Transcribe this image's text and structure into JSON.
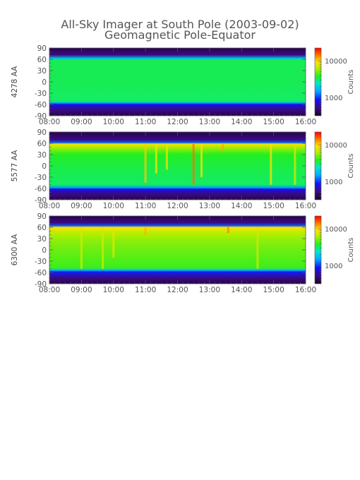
{
  "figure": {
    "title_line1": "All-Sky Imager at South Pole (2003-09-02)",
    "title_line2": "Geomagnetic Pole-Equator"
  },
  "chart_data": [
    {
      "type": "heatmap",
      "ylabel": "4278 AA",
      "x_ticks": [
        "08:00",
        "09:00",
        "10:00",
        "11:00",
        "12:00",
        "13:00",
        "14:00",
        "15:00",
        "16:00"
      ],
      "y_ticks": [
        90,
        60,
        30,
        0,
        -30,
        -60,
        -90
      ],
      "xlim": [
        "08:00",
        "16:00"
      ],
      "ylim": [
        -90,
        90
      ],
      "colorbar": {
        "label": "Counts",
        "ticks": [
          10000,
          1000
        ],
        "scale": "log"
      },
      "band_profile": [
        {
          "lat": 90,
          "level": 0.05
        },
        {
          "lat": 72,
          "level": 0.12
        },
        {
          "lat": 62,
          "level": 0.42
        },
        {
          "lat": 58,
          "level": 0.55
        },
        {
          "lat": 0,
          "level": 0.55
        },
        {
          "lat": -52,
          "level": 0.54
        },
        {
          "lat": -56,
          "level": 0.35
        },
        {
          "lat": -60,
          "level": 0.22
        },
        {
          "lat": -75,
          "level": 0.12
        },
        {
          "lat": -90,
          "level": 0.05
        }
      ],
      "features": []
    },
    {
      "type": "heatmap",
      "ylabel": "5577 AA",
      "x_ticks": [
        "08:00",
        "09:00",
        "10:00",
        "11:00",
        "12:00",
        "13:00",
        "14:00",
        "15:00",
        "16:00"
      ],
      "y_ticks": [
        90,
        60,
        30,
        0,
        -30,
        -60,
        -90
      ],
      "xlim": [
        "08:00",
        "16:00"
      ],
      "ylim": [
        -90,
        90
      ],
      "colorbar": {
        "label": "Counts",
        "ticks": [
          10000,
          1000
        ],
        "scale": "log"
      },
      "band_profile": [
        {
          "lat": 90,
          "level": 0.05
        },
        {
          "lat": 70,
          "level": 0.12
        },
        {
          "lat": 62,
          "level": 0.3
        },
        {
          "lat": 58,
          "level": 0.78
        },
        {
          "lat": 48,
          "level": 0.68
        },
        {
          "lat": 30,
          "level": 0.58
        },
        {
          "lat": 0,
          "level": 0.56
        },
        {
          "lat": -50,
          "level": 0.54
        },
        {
          "lat": -58,
          "level": 0.35
        },
        {
          "lat": -62,
          "level": 0.22
        },
        {
          "lat": -75,
          "level": 0.12
        },
        {
          "lat": -90,
          "level": 0.05
        }
      ],
      "features": [
        {
          "x": "11:00",
          "lat_top": 58,
          "lat_bottom": -45,
          "level": 0.82
        },
        {
          "x": "11:20",
          "lat_top": 58,
          "lat_bottom": -20,
          "level": 0.8
        },
        {
          "x": "11:40",
          "lat_top": 58,
          "lat_bottom": -10,
          "level": 0.78
        },
        {
          "x": "12:30",
          "lat_top": 58,
          "lat_bottom": -50,
          "level": 0.9
        },
        {
          "x": "12:45",
          "lat_top": 58,
          "lat_bottom": -30,
          "level": 0.8
        },
        {
          "x": "13:25",
          "lat_top": 58,
          "lat_bottom": 40,
          "level": 0.85
        },
        {
          "x": "14:55",
          "lat_top": 58,
          "lat_bottom": -50,
          "level": 0.8
        },
        {
          "x": "15:40",
          "lat_top": 58,
          "lat_bottom": -50,
          "level": 0.75
        }
      ]
    },
    {
      "type": "heatmap",
      "ylabel": "6300 AA",
      "x_ticks": [
        "08:00",
        "09:00",
        "10:00",
        "11:00",
        "12:00",
        "13:00",
        "14:00",
        "15:00",
        "16:00"
      ],
      "y_ticks": [
        90,
        60,
        30,
        0,
        -30,
        -60,
        -90
      ],
      "xlim": [
        "08:00",
        "16:00"
      ],
      "ylim": [
        -90,
        90
      ],
      "colorbar": {
        "label": "Counts",
        "ticks": [
          10000,
          1000
        ],
        "scale": "log"
      },
      "band_profile": [
        {
          "lat": 90,
          "level": 0.05
        },
        {
          "lat": 72,
          "level": 0.12
        },
        {
          "lat": 64,
          "level": 0.3
        },
        {
          "lat": 60,
          "level": 0.8
        },
        {
          "lat": 45,
          "level": 0.7
        },
        {
          "lat": 20,
          "level": 0.66
        },
        {
          "lat": 0,
          "level": 0.64
        },
        {
          "lat": -48,
          "level": 0.6
        },
        {
          "lat": -54,
          "level": 0.4
        },
        {
          "lat": -58,
          "level": 0.25
        },
        {
          "lat": -75,
          "level": 0.12
        },
        {
          "lat": -90,
          "level": 0.05
        }
      ],
      "features": [
        {
          "x": "09:00",
          "lat_top": 60,
          "lat_bottom": -50,
          "level": 0.74
        },
        {
          "x": "09:40",
          "lat_top": 60,
          "lat_bottom": -50,
          "level": 0.74
        },
        {
          "x": "10:00",
          "lat_top": 60,
          "lat_bottom": -20,
          "level": 0.76
        },
        {
          "x": "11:00",
          "lat_top": 60,
          "lat_bottom": 40,
          "level": 0.84
        },
        {
          "x": "13:35",
          "lat_top": 62,
          "lat_bottom": 45,
          "level": 0.88
        },
        {
          "x": "14:30",
          "lat_top": 60,
          "lat_bottom": -50,
          "level": 0.74
        }
      ]
    }
  ]
}
